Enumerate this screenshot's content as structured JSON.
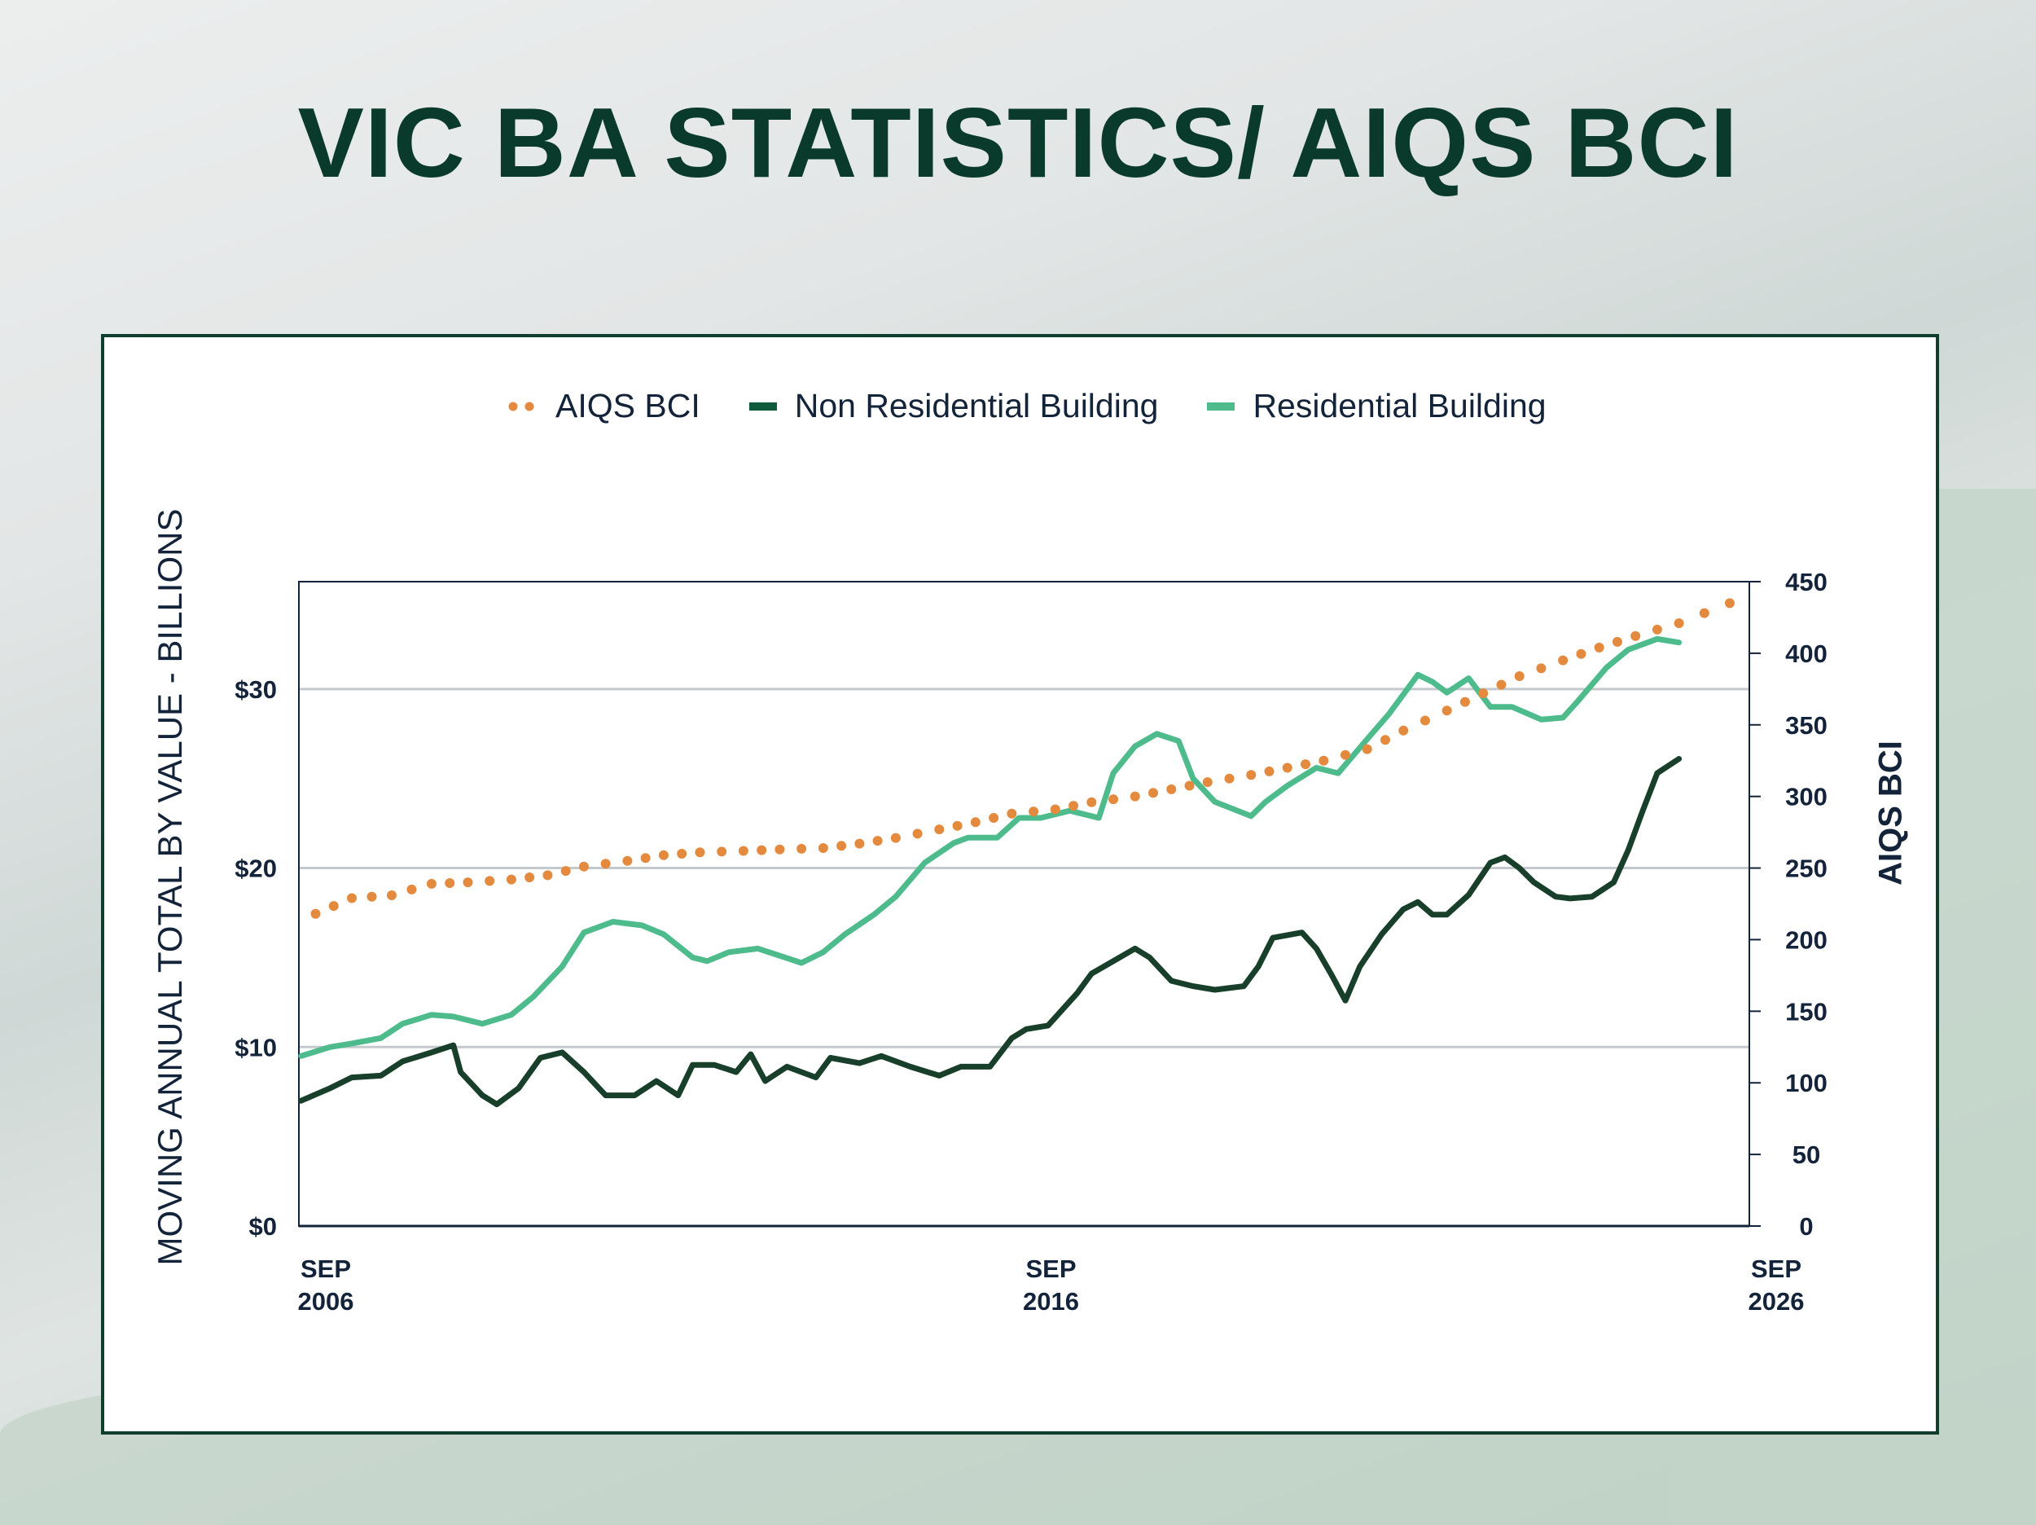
{
  "title": "VIC BA STATISTICS/ AIQS BCI",
  "colors": {
    "bci": "#e38a3f",
    "non_residential": "#173f2a",
    "residential": "#4dbb8c",
    "title": "#0a3a2b",
    "grid": "#c3c9cc",
    "axis": "#13233a"
  },
  "chart_data": {
    "type": "line",
    "title": "VIC BA STATISTICS/ AIQS BCI",
    "legend": [
      "AIQS BCI",
      "Non Residential Building",
      "Residential Building"
    ],
    "legend_position": "top-center",
    "ylabel": "MOVING ANNUAL TOTAL BY VALUE - BILLIONS",
    "y2label": "AIQS BCI",
    "xlim": [
      2006.67,
      2026.67
    ],
    "ylim": [
      0,
      36
    ],
    "y2lim": [
      0,
      450
    ],
    "grid": "horizontal",
    "x_ticks": [
      {
        "x": 2006.67,
        "l1": "SEP",
        "l2": "2006"
      },
      {
        "x": 2016.67,
        "l1": "SEP",
        "l2": "2016"
      },
      {
        "x": 2026.67,
        "l1": "SEP",
        "l2": "2026"
      }
    ],
    "y_ticks": [
      {
        "v": 0,
        "label": "$0"
      },
      {
        "v": 10,
        "label": "$10"
      },
      {
        "v": 20,
        "label": "$20"
      },
      {
        "v": 30,
        "label": "$30"
      }
    ],
    "y2_ticks": [
      {
        "v": 0,
        "label": "0"
      },
      {
        "v": 50,
        "label": "50"
      },
      {
        "v": 100,
        "label": "100"
      },
      {
        "v": 150,
        "label": "150"
      },
      {
        "v": 200,
        "label": "200"
      },
      {
        "v": 250,
        "label": "250"
      },
      {
        "v": 300,
        "label": "300"
      },
      {
        "v": 350,
        "label": "350"
      },
      {
        "v": 400,
        "label": "400"
      },
      {
        "v": 450,
        "label": "450"
      }
    ],
    "series": [
      {
        "name": "Residential Building",
        "axis": "left",
        "style": "line",
        "x": [
          2006.7,
          2007.1,
          2007.4,
          2007.8,
          2008.1,
          2008.5,
          2008.8,
          2009.2,
          2009.6,
          2009.9,
          2010.3,
          2010.6,
          2011.0,
          2011.4,
          2011.7,
          2012.1,
          2012.3,
          2012.6,
          2013.0,
          2013.3,
          2013.6,
          2013.9,
          2014.2,
          2014.6,
          2014.9,
          2015.3,
          2015.7,
          2015.9,
          2016.3,
          2016.6,
          2016.9,
          2017.3,
          2017.7,
          2017.9,
          2018.2,
          2018.5,
          2018.8,
          2019.0,
          2019.3,
          2019.8,
          2020.0,
          2020.3,
          2020.7,
          2021.0,
          2021.4,
          2021.7,
          2022.1,
          2022.3,
          2022.5,
          2022.8,
          2023.1,
          2023.4,
          2023.8,
          2024.1,
          2024.3,
          2024.7,
          2025.0,
          2025.4,
          2025.7
        ],
        "y": [
          9.5,
          10.0,
          10.2,
          10.5,
          11.3,
          11.8,
          11.7,
          11.3,
          11.8,
          12.8,
          14.5,
          16.4,
          17.0,
          16.8,
          16.3,
          15.0,
          14.8,
          15.3,
          15.5,
          15.1,
          14.7,
          15.3,
          16.3,
          17.4,
          18.4,
          20.3,
          21.4,
          21.7,
          21.7,
          22.8,
          22.8,
          23.2,
          22.8,
          25.3,
          26.8,
          27.5,
          27.1,
          25.0,
          23.7,
          22.9,
          23.7,
          24.6,
          25.6,
          25.3,
          27.2,
          28.6,
          30.8,
          30.4,
          29.8,
          30.6,
          29.0,
          29.0,
          28.3,
          28.4,
          29.3,
          31.2,
          32.2,
          32.8,
          32.6
        ]
      },
      {
        "name": "Non Residential Building",
        "axis": "left",
        "style": "line",
        "x": [
          2006.7,
          2007.1,
          2007.4,
          2007.8,
          2008.1,
          2008.5,
          2008.8,
          2008.9,
          2009.2,
          2009.4,
          2009.7,
          2010.0,
          2010.3,
          2010.6,
          2010.9,
          2011.3,
          2011.6,
          2011.9,
          2012.1,
          2012.4,
          2012.7,
          2012.9,
          2013.1,
          2013.4,
          2013.8,
          2014.0,
          2014.4,
          2014.7,
          2015.1,
          2015.5,
          2015.8,
          2016.2,
          2016.5,
          2016.7,
          2017.0,
          2017.4,
          2017.6,
          2017.9,
          2018.2,
          2018.4,
          2018.7,
          2019.0,
          2019.3,
          2019.7,
          2019.9,
          2020.1,
          2020.5,
          2020.7,
          2020.9,
          2021.1,
          2021.3,
          2021.6,
          2021.9,
          2022.1,
          2022.3,
          2022.5,
          2022.8,
          2023.1,
          2023.3,
          2023.5,
          2023.7,
          2024.0,
          2024.2,
          2024.5,
          2024.8,
          2025.0,
          2025.2,
          2025.4,
          2025.7
        ],
        "y": [
          7.0,
          7.7,
          8.3,
          8.4,
          9.2,
          9.7,
          10.1,
          8.6,
          7.3,
          6.8,
          7.7,
          9.4,
          9.7,
          8.6,
          7.3,
          7.3,
          8.1,
          7.3,
          9.0,
          9.0,
          8.6,
          9.6,
          8.1,
          8.9,
          8.3,
          9.4,
          9.1,
          9.5,
          8.9,
          8.4,
          8.9,
          8.9,
          10.5,
          11.0,
          11.2,
          13.0,
          14.1,
          14.8,
          15.5,
          15.0,
          13.7,
          13.4,
          13.2,
          13.4,
          14.5,
          16.1,
          16.4,
          15.5,
          14.1,
          12.6,
          14.5,
          16.3,
          17.7,
          18.1,
          17.4,
          17.4,
          18.5,
          20.3,
          20.6,
          20.0,
          19.2,
          18.4,
          18.3,
          18.4,
          19.2,
          21.0,
          23.2,
          25.3,
          26.1
        ]
      },
      {
        "name": "AIQS BCI",
        "axis": "right",
        "style": "dotted",
        "x": [
          2006.9,
          2007.4,
          2007.95,
          2008.5,
          2009.0,
          2009.6,
          2010.1,
          2010.6,
          2011.2,
          2011.7,
          2012.2,
          2012.8,
          2013.3,
          2013.9,
          2014.4,
          2014.9,
          2015.5,
          2016.0,
          2016.5,
          2017.1,
          2017.6,
          2018.2,
          2018.7,
          2019.2,
          2019.8,
          2020.3,
          2020.8,
          2021.4,
          2021.9,
          2022.5,
          2023.0,
          2023.5,
          2024.1,
          2024.6,
          2025.1,
          2025.7,
          2026.4
        ],
        "y": [
          218,
          229,
          231,
          239,
          240,
          242,
          245,
          251,
          255,
          259,
          261,
          262,
          263,
          264,
          267,
          271,
          277,
          282,
          288,
          291,
          296,
          300,
          305,
          310,
          315,
          320,
          325,
          333,
          346,
          360,
          372,
          384,
          395,
          404,
          412,
          421,
          435
        ]
      }
    ]
  }
}
